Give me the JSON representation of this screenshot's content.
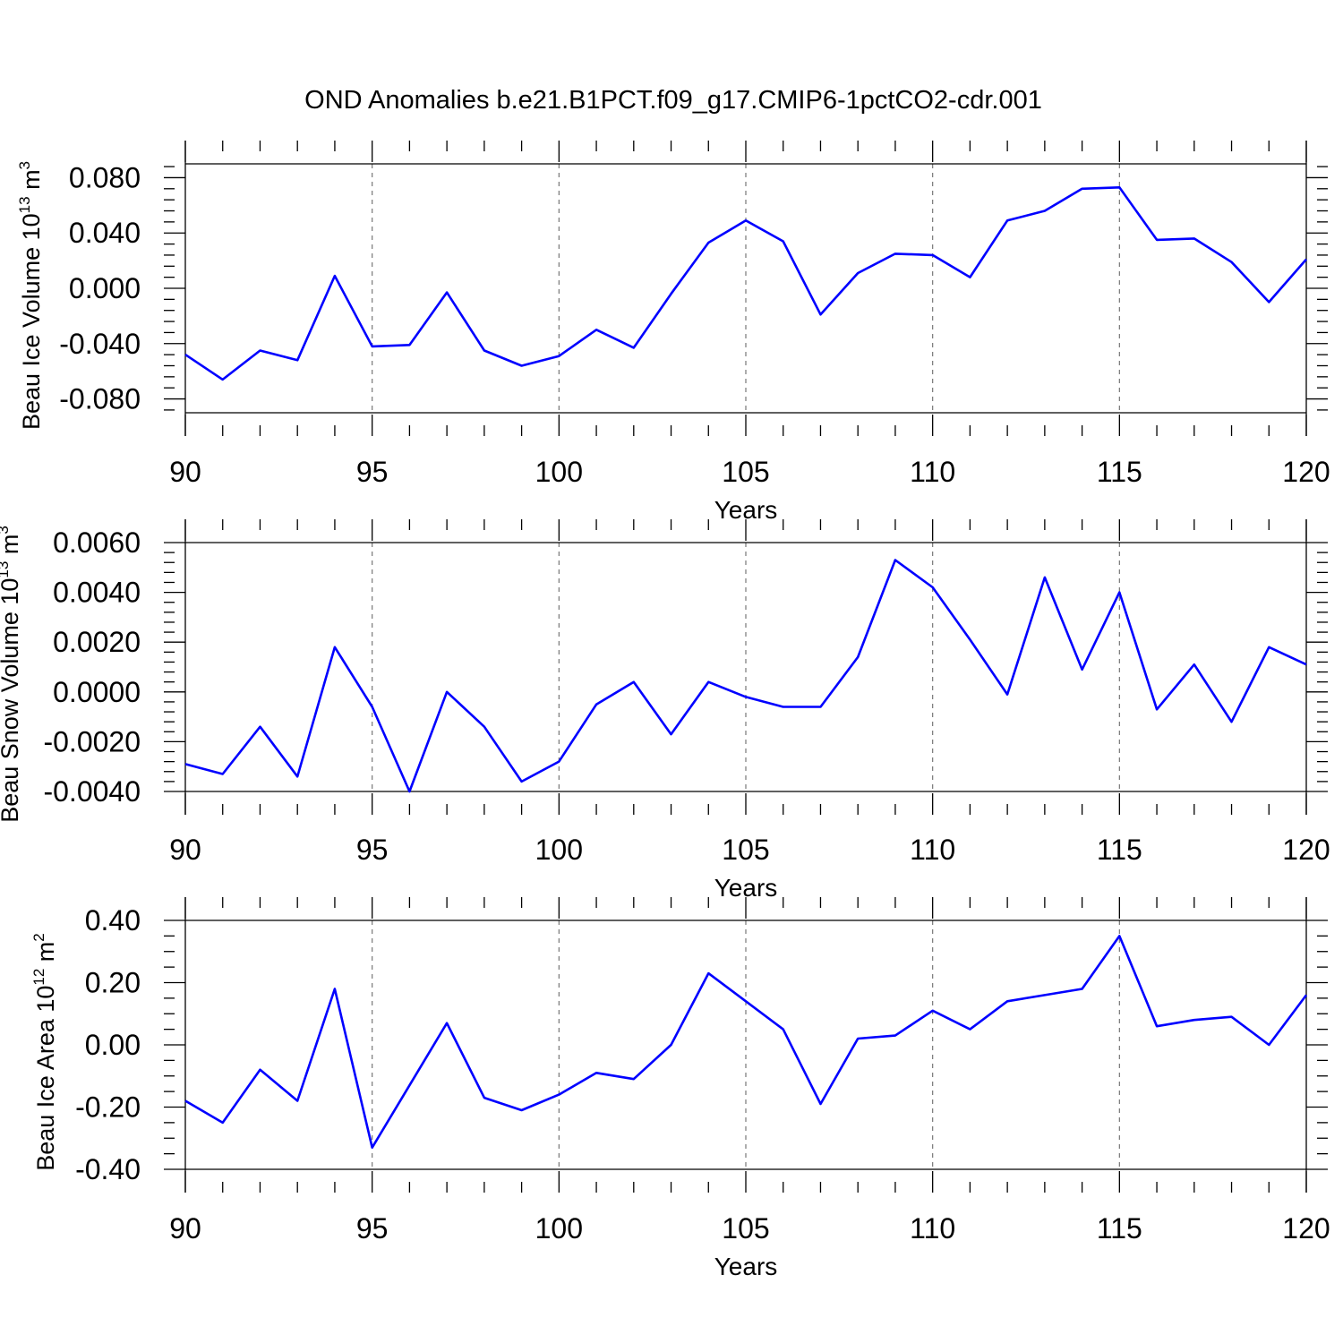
{
  "title": "OND Anomalies b.e21.B1PCT.f09_g17.CMIP6-1pctCO2-cdr.001",
  "colors": {
    "line": "#0000ff",
    "grid": "#777777"
  },
  "chart_data": [
    {
      "type": "line",
      "ylabel": "Beau Ice Volume 10",
      "ylabel_sup": "13",
      "ylabel_unit": "m",
      "ylabel_unit_sup": "3",
      "xlabel": "Years",
      "xlim": [
        90,
        120
      ],
      "ylim": [
        -0.09,
        0.09
      ],
      "xticks": [
        "90",
        "95",
        "100",
        "105",
        "110",
        "115",
        "120"
      ],
      "yticks": [
        "0.080",
        "0.040",
        "0.000",
        "-0.040",
        "-0.080"
      ],
      "grid": "vertical dashed at major x ticks",
      "series": [
        {
          "x": [
            90,
            91,
            92,
            93,
            94,
            95,
            96,
            97,
            98,
            99,
            100,
            101,
            102,
            103,
            104,
            105,
            106,
            107,
            108,
            109,
            110,
            111,
            112,
            113,
            114,
            115,
            116,
            117,
            118,
            119,
            120
          ],
          "values": [
            -0.048,
            -0.066,
            -0.045,
            -0.052,
            0.009,
            -0.042,
            -0.041,
            -0.003,
            -0.045,
            -0.056,
            -0.049,
            -0.03,
            -0.043,
            -0.004,
            0.033,
            0.049,
            0.034,
            -0.019,
            0.011,
            0.025,
            0.024,
            0.008,
            0.049,
            0.056,
            0.072,
            0.073,
            0.035,
            0.036,
            0.019,
            -0.01,
            0.021
          ]
        }
      ]
    },
    {
      "type": "line",
      "ylabel": "Beau Snow Volume 10",
      "ylabel_sup": "13",
      "ylabel_unit": "m",
      "ylabel_unit_sup": "3",
      "xlabel": "Years",
      "xlim": [
        90,
        120
      ],
      "ylim": [
        -0.004,
        0.006
      ],
      "xticks": [
        "90",
        "95",
        "100",
        "105",
        "110",
        "115",
        "120"
      ],
      "yticks": [
        "0.0060",
        "0.0040",
        "0.0020",
        "0.0000",
        "-0.0020",
        "-0.0040"
      ],
      "grid": "vertical dashed at major x ticks",
      "series": [
        {
          "x": [
            90,
            91,
            92,
            93,
            94,
            95,
            96,
            97,
            98,
            99,
            100,
            101,
            102,
            103,
            104,
            105,
            106,
            107,
            108,
            109,
            110,
            111,
            112,
            113,
            114,
            115,
            116,
            117,
            118,
            119,
            120
          ],
          "values": [
            -0.0029,
            -0.0033,
            -0.0014,
            -0.0034,
            0.0018,
            -0.0006,
            -0.004,
            0.0,
            -0.0014,
            -0.0036,
            -0.0028,
            -0.0005,
            0.0004,
            -0.0017,
            0.0004,
            -0.0002,
            -0.0006,
            -0.0006,
            0.0014,
            0.0053,
            0.0042,
            0.0021,
            -0.0001,
            0.0046,
            0.0009,
            0.004,
            -0.0007,
            0.0011,
            -0.0012,
            0.0018,
            0.0011
          ]
        }
      ]
    },
    {
      "type": "line",
      "ylabel": "Beau Ice Area 10",
      "ylabel_sup": "12",
      "ylabel_unit": "m",
      "ylabel_unit_sup": "2",
      "xlabel": "Years",
      "xlim": [
        90,
        120
      ],
      "ylim": [
        -0.4,
        0.4
      ],
      "xticks": [
        "90",
        "95",
        "100",
        "105",
        "110",
        "115",
        "120"
      ],
      "yticks": [
        "0.40",
        "0.20",
        "0.00",
        "-0.20",
        "-0.40"
      ],
      "grid": "vertical dashed at major x ticks",
      "series": [
        {
          "x": [
            90,
            91,
            92,
            93,
            94,
            95,
            96,
            97,
            98,
            99,
            100,
            101,
            102,
            103,
            104,
            105,
            106,
            107,
            108,
            109,
            110,
            111,
            112,
            113,
            114,
            115,
            116,
            117,
            118,
            119,
            120
          ],
          "values": [
            -0.18,
            -0.25,
            -0.08,
            -0.18,
            0.18,
            -0.33,
            -0.13,
            0.07,
            -0.17,
            -0.21,
            -0.16,
            -0.09,
            -0.11,
            0.0,
            0.23,
            0.14,
            0.05,
            -0.19,
            0.02,
            0.03,
            0.11,
            0.05,
            0.14,
            0.16,
            0.18,
            0.35,
            0.06,
            0.08,
            0.09,
            0.0,
            0.16
          ]
        }
      ]
    }
  ]
}
